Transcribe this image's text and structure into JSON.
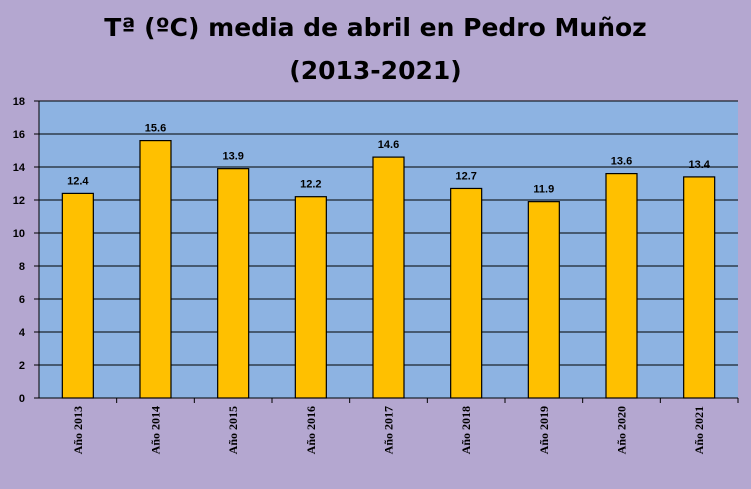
{
  "chart_data": {
    "type": "bar",
    "title": "Tª (ºC) media de abril en Pedro Muñoz",
    "subtitle": "(2013-2021)",
    "categories": [
      "Año 2013",
      "Año 2014",
      "Año 2015",
      "Año 2016",
      "Año 2017",
      "Año 2018",
      "Año 2019",
      "Año 2020",
      "Año 2021"
    ],
    "values": [
      12.4,
      15.6,
      13.9,
      12.2,
      14.6,
      12.7,
      11.9,
      13.6,
      13.4
    ],
    "data_labels": [
      "12.4",
      "15.6",
      "13.9",
      "12.2",
      "14.6",
      "12.7",
      "11.9",
      "13.6",
      "13.4"
    ],
    "ylim": [
      0,
      18
    ],
    "yticks": [
      0,
      2,
      4,
      6,
      8,
      10,
      12,
      14,
      16,
      18
    ],
    "xlabel": "",
    "ylabel": "",
    "grid": true,
    "legend": "none",
    "colors": {
      "background": "#b4a7d0",
      "plot_area": "#8db3e2",
      "bar": "#ffc000",
      "bar_edge": "#000000",
      "grid": "#000000"
    }
  }
}
